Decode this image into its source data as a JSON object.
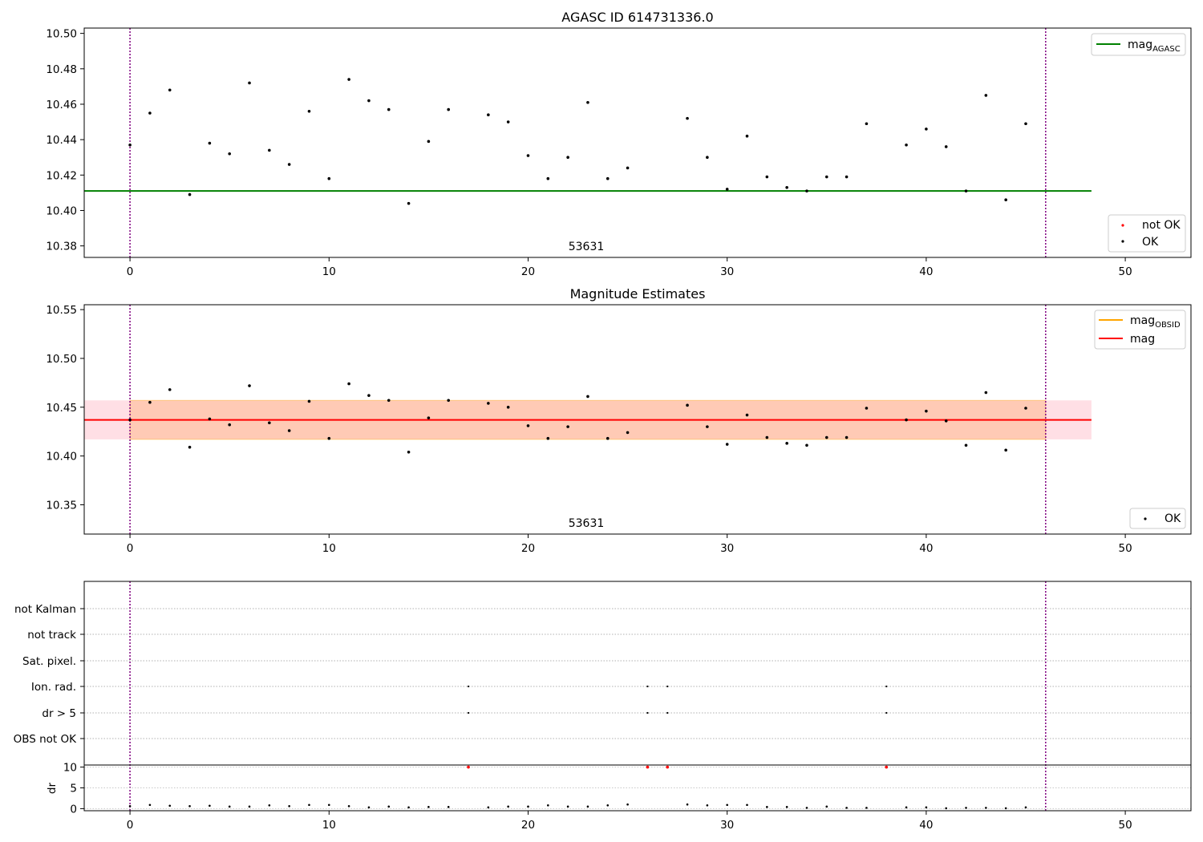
{
  "chart_data": [
    {
      "type": "scatter",
      "title": "AGASC ID 614731336.0",
      "xlim": [
        -2.3,
        53.3
      ],
      "ylim": [
        10.3735,
        10.503
      ],
      "xticks": [
        0,
        10,
        20,
        30,
        40,
        50
      ],
      "yticks": [
        10.38,
        10.4,
        10.42,
        10.44,
        10.46,
        10.48,
        10.5
      ],
      "ytick_labels": [
        "10.38",
        "10.40",
        "10.42",
        "10.44",
        "10.46",
        "10.48",
        "10.50"
      ],
      "mag_agasc": 10.411,
      "mag_agasc_xrange": [
        -2.3,
        48.3
      ],
      "obsid_boundaries": [
        0,
        46
      ],
      "obsid_label": "53631",
      "obsid_label_x": 23,
      "legend_upper": {
        "label": "mag",
        "subscript": "AGASC",
        "color": "#008000",
        "placement": "top-right"
      },
      "legend_lower": {
        "placement": "bottom-right",
        "entries": [
          {
            "label": "not OK",
            "color": "#ff0000"
          },
          {
            "label": "OK",
            "color": "#000000"
          }
        ]
      },
      "series": [
        {
          "name": "OK",
          "color": "#000000",
          "x": [
            0,
            1,
            2,
            3,
            4,
            5,
            6,
            7,
            8,
            9,
            10,
            11,
            12,
            13,
            14,
            15,
            16,
            18,
            19,
            20,
            21,
            22,
            23,
            24,
            25,
            28,
            29,
            30,
            31,
            32,
            33,
            34,
            35,
            36,
            37,
            39,
            40,
            41,
            42,
            43,
            44,
            45
          ],
          "y": [
            10.437,
            10.455,
            10.468,
            10.409,
            10.438,
            10.432,
            10.472,
            10.434,
            10.426,
            10.456,
            10.418,
            10.474,
            10.462,
            10.457,
            10.404,
            10.439,
            10.457,
            10.454,
            10.45,
            10.431,
            10.418,
            10.43,
            10.461,
            10.418,
            10.424,
            10.452,
            10.43,
            10.412,
            10.442,
            10.419,
            10.413,
            10.411,
            10.419,
            10.419,
            10.449,
            10.437,
            10.446,
            10.436,
            10.411,
            10.465,
            10.406,
            10.449
          ]
        }
      ]
    },
    {
      "type": "scatter",
      "title": "Magnitude Estimates",
      "xlim": [
        -2.3,
        53.3
      ],
      "ylim": [
        10.32,
        10.555
      ],
      "xticks": [
        0,
        10,
        20,
        30,
        40,
        50
      ],
      "yticks": [
        10.35,
        10.4,
        10.45,
        10.5,
        10.55
      ],
      "ytick_labels": [
        "10.35",
        "10.40",
        "10.45",
        "10.50",
        "10.55"
      ],
      "mag": 10.437,
      "mag_band": [
        10.417,
        10.457
      ],
      "obsid_band_xrange": [
        0,
        46
      ],
      "mag_xrange": [
        -2.3,
        48.3
      ],
      "obsid_boundaries": [
        0,
        46
      ],
      "obsid_label": "53631",
      "obsid_label_x": 23,
      "legend_upper": {
        "placement": "top-right",
        "entries": [
          {
            "label": "mag",
            "subscript": "OBSID",
            "color": "#ffa500"
          },
          {
            "label": "mag",
            "subscript": "",
            "color": "#ff0000"
          }
        ]
      },
      "legend_lower": {
        "placement": "bottom-right",
        "entries": [
          {
            "label": "OK",
            "color": "#000000"
          }
        ]
      },
      "series": [
        {
          "name": "OK",
          "color": "#000000",
          "x": [
            0,
            1,
            2,
            3,
            4,
            5,
            6,
            7,
            8,
            9,
            10,
            11,
            12,
            13,
            14,
            15,
            16,
            18,
            19,
            20,
            21,
            22,
            23,
            24,
            25,
            28,
            29,
            30,
            31,
            32,
            33,
            34,
            35,
            36,
            37,
            39,
            40,
            41,
            42,
            43,
            44,
            45
          ],
          "y": [
            10.437,
            10.455,
            10.468,
            10.409,
            10.438,
            10.432,
            10.472,
            10.434,
            10.426,
            10.456,
            10.418,
            10.474,
            10.462,
            10.457,
            10.404,
            10.439,
            10.457,
            10.454,
            10.45,
            10.431,
            10.418,
            10.43,
            10.461,
            10.418,
            10.424,
            10.452,
            10.43,
            10.412,
            10.442,
            10.419,
            10.413,
            10.411,
            10.419,
            10.419,
            10.449,
            10.437,
            10.446,
            10.436,
            10.411,
            10.465,
            10.406,
            10.449
          ]
        }
      ]
    },
    {
      "type": "scatter",
      "title": "",
      "xlim": [
        -2.3,
        53.3
      ],
      "xticks": [
        0,
        10,
        20,
        30,
        40,
        50
      ],
      "flag_labels": [
        "not Kalman",
        "not track",
        "Sat. pixel.",
        "Ion. rad.",
        "dr > 5",
        "OBS not OK"
      ],
      "obsid_boundaries": [
        0,
        46
      ],
      "flags": [
        {
          "name": "Ion. rad.",
          "x": [
            17,
            26,
            27,
            38
          ]
        },
        {
          "name": "dr > 5",
          "x": [
            17,
            26,
            27,
            38
          ]
        }
      ],
      "dr_panel": {
        "ylabel": "dr",
        "ylim": [
          -0.5,
          10.5
        ],
        "yticks": [
          0,
          5,
          10
        ],
        "ytick_labels": [
          "0",
          "5",
          "10"
        ],
        "ok": {
          "x": [
            0,
            1,
            2,
            3,
            4,
            5,
            6,
            7,
            8,
            9,
            10,
            11,
            12,
            13,
            14,
            15,
            16,
            18,
            19,
            20,
            21,
            22,
            23,
            24,
            25,
            28,
            29,
            30,
            31,
            32,
            33,
            34,
            35,
            36,
            37,
            39,
            40,
            41,
            42,
            43,
            44,
            45
          ],
          "y": [
            0.6,
            0.9,
            0.7,
            0.6,
            0.7,
            0.5,
            0.5,
            0.8,
            0.6,
            0.9,
            0.9,
            0.6,
            0.3,
            0.5,
            0.3,
            0.4,
            0.4,
            0.3,
            0.5,
            0.5,
            0.8,
            0.5,
            0.5,
            0.8,
            1.0,
            1.0,
            0.8,
            0.9,
            0.9,
            0.4,
            0.4,
            0.2,
            0.5,
            0.2,
            0.2,
            0.3,
            0.3,
            0.1,
            0.2,
            0.2,
            0.1,
            0.3
          ]
        },
        "not_ok": {
          "x": [
            17,
            26,
            27,
            38
          ],
          "y": [
            10,
            10,
            10,
            10
          ]
        }
      }
    }
  ]
}
